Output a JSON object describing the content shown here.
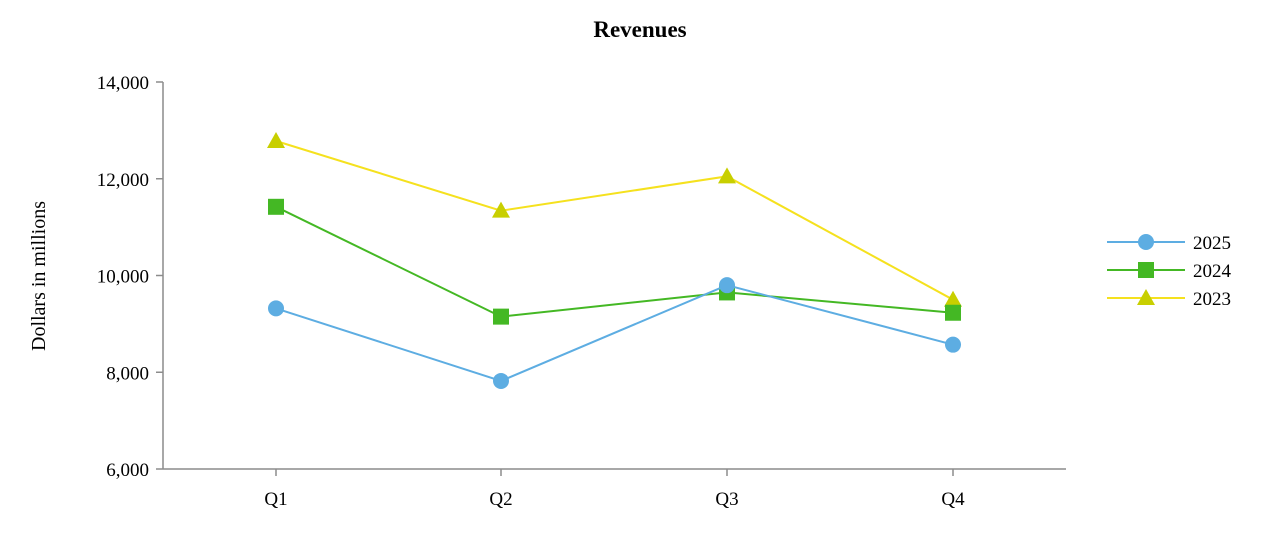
{
  "chart_data": {
    "type": "line",
    "title": "Revenues",
    "xlabel": "",
    "ylabel": "Dollars in millions",
    "categories": [
      "Q1",
      "Q2",
      "Q3",
      "Q4"
    ],
    "ylim": [
      6000,
      14000
    ],
    "yticks": [
      6000,
      8000,
      10000,
      12000,
      14000
    ],
    "ytick_labels": [
      "6,000",
      "8,000",
      "10,000",
      "12,000",
      "14,000"
    ],
    "grid": false,
    "legend_position": "right",
    "series": [
      {
        "name": "2025",
        "values": [
          9320,
          7820,
          9800,
          8570
        ],
        "color": "#5DADE2",
        "marker": "circle"
      },
      {
        "name": "2024",
        "values": [
          11420,
          9150,
          9650,
          9230
        ],
        "color": "#44B824",
        "marker": "square"
      },
      {
        "name": "2023",
        "values": [
          12780,
          11340,
          12050,
          9500
        ],
        "color": "#F5E11E",
        "marker_color": "#C8CF00",
        "marker": "triangle"
      }
    ]
  }
}
